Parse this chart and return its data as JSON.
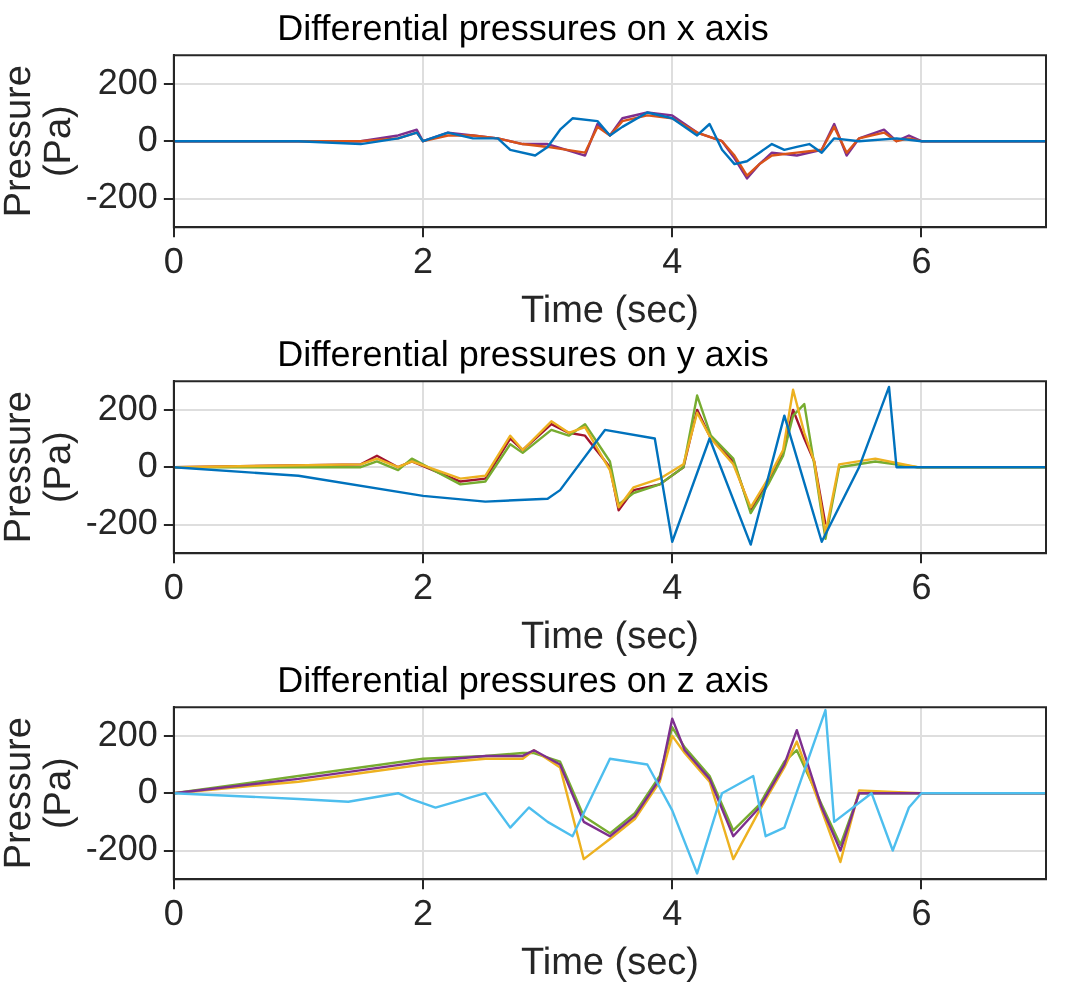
{
  "chart_data": [
    {
      "type": "line",
      "title": "Differential pressures on x axis",
      "xlabel": "Time (sec)",
      "ylabel": "Pressure (Pa)",
      "xlim": [
        0,
        7
      ],
      "xticks": [
        0,
        2,
        4,
        6
      ],
      "ylim": [
        -300,
        300
      ],
      "yticks": [
        -200,
        0,
        200
      ],
      "grid": true,
      "series": [
        {
          "color": "#0072bd",
          "x": [
            0,
            1,
            1.5,
            1.8,
            1.95,
            2.0,
            2.2,
            2.4,
            2.6,
            2.7,
            2.9,
            3.0,
            3.1,
            3.2,
            3.4,
            3.5,
            3.6,
            3.8,
            4.0,
            4.2,
            4.3,
            4.4,
            4.5,
            4.6,
            4.7,
            4.8,
            4.9,
            5.0,
            5.1,
            5.2,
            5.3,
            5.5,
            5.8,
            6,
            7
          ],
          "values": [
            0,
            0,
            -10,
            10,
            30,
            0,
            30,
            10,
            10,
            -30,
            -50,
            -20,
            40,
            80,
            70,
            20,
            50,
            100,
            80,
            20,
            60,
            -30,
            -80,
            -70,
            -40,
            -10,
            -30,
            -20,
            -10,
            -40,
            10,
            0,
            10,
            0,
            0
          ]
        },
        {
          "color": "#d95319",
          "x": [
            0,
            1.5,
            1.8,
            1.95,
            2.0,
            2.2,
            2.4,
            2.6,
            2.8,
            3.0,
            3.3,
            3.4,
            3.5,
            3.6,
            3.8,
            4.0,
            4.2,
            4.4,
            4.5,
            4.6,
            4.7,
            4.8,
            5.0,
            5.2,
            5.3,
            5.4,
            5.5,
            5.7,
            5.8,
            5.9,
            6,
            7
          ],
          "values": [
            0,
            0,
            10,
            30,
            0,
            20,
            20,
            10,
            -10,
            -20,
            -40,
            50,
            20,
            70,
            90,
            80,
            30,
            0,
            -50,
            -120,
            -80,
            -50,
            -40,
            -30,
            50,
            -40,
            10,
            30,
            0,
            10,
            0,
            0
          ]
        },
        {
          "color": "#7e2f8e",
          "x": [
            0,
            1.5,
            1.8,
            1.95,
            2.0,
            2.2,
            2.4,
            2.6,
            2.8,
            3.0,
            3.3,
            3.4,
            3.5,
            3.6,
            3.8,
            4.0,
            4.2,
            4.4,
            4.5,
            4.6,
            4.7,
            4.8,
            5.0,
            5.2,
            5.3,
            5.4,
            5.5,
            5.7,
            5.8,
            5.9,
            6,
            7
          ],
          "values": [
            0,
            0,
            20,
            40,
            0,
            30,
            20,
            10,
            -10,
            -10,
            -50,
            60,
            20,
            80,
            100,
            90,
            30,
            0,
            -60,
            -130,
            -80,
            -40,
            -50,
            -30,
            60,
            -50,
            10,
            40,
            0,
            20,
            0,
            0
          ]
        }
      ]
    },
    {
      "type": "line",
      "title": "Differential pressures on y axis",
      "xlabel": "Time (sec)",
      "ylabel": "Pressure (Pa)",
      "xlim": [
        0,
        7
      ],
      "xticks": [
        0,
        2,
        4,
        6
      ],
      "ylim": [
        -300,
        300
      ],
      "yticks": [
        -200,
        0,
        200
      ],
      "grid": true,
      "series": [
        {
          "color": "#0072bd",
          "x": [
            0,
            1,
            2,
            2.5,
            3.0,
            3.1,
            3.46,
            3.86,
            4.0,
            4.3,
            4.63,
            4.9,
            5.2,
            5.5,
            5.74,
            5.8,
            6,
            7
          ],
          "values": [
            0,
            -30,
            -100,
            -120,
            -110,
            -80,
            130,
            100,
            -260,
            100,
            -270,
            180,
            -260,
            0,
            280,
            0,
            0,
            0
          ]
        },
        {
          "color": "#edb120",
          "x": [
            0,
            1.5,
            1.63,
            1.8,
            1.91,
            2.3,
            2.5,
            2.7,
            2.8,
            3.03,
            3.17,
            3.3,
            3.5,
            3.57,
            3.69,
            3.9,
            4.09,
            4.2,
            4.31,
            4.49,
            4.63,
            4.77,
            4.89,
            4.97,
            5.06,
            5.14,
            5.23,
            5.34,
            5.63,
            5.97,
            7
          ],
          "values": [
            0,
            10,
            30,
            0,
            20,
            -40,
            -30,
            110,
            60,
            160,
            120,
            140,
            -10,
            -140,
            -70,
            -40,
            10,
            190,
            100,
            10,
            -140,
            -40,
            60,
            270,
            120,
            20,
            -230,
            10,
            30,
            0,
            0
          ]
        },
        {
          "color": "#77ac30",
          "x": [
            0,
            1.5,
            1.63,
            1.8,
            1.91,
            2.3,
            2.5,
            2.7,
            2.8,
            3.03,
            3.17,
            3.3,
            3.5,
            3.57,
            3.69,
            3.9,
            4.09,
            4.2,
            4.31,
            4.49,
            4.63,
            4.77,
            4.89,
            4.97,
            5.06,
            5.14,
            5.23,
            5.34,
            5.63,
            5.97,
            7
          ],
          "values": [
            0,
            0,
            20,
            -10,
            30,
            -60,
            -50,
            80,
            50,
            130,
            110,
            150,
            20,
            -130,
            -90,
            -60,
            0,
            250,
            110,
            30,
            -160,
            -60,
            40,
            180,
            220,
            10,
            -250,
            0,
            20,
            0,
            0
          ]
        },
        {
          "color": "#a2142f",
          "x": [
            0,
            1.5,
            1.63,
            1.8,
            1.91,
            2.3,
            2.5,
            2.7,
            2.8,
            3.03,
            3.17,
            3.3,
            3.5,
            3.57,
            3.69,
            3.9,
            4.09,
            4.2,
            4.31,
            4.49,
            4.63,
            4.77,
            4.89,
            4.97,
            5.06,
            5.14,
            5.23
          ],
          "values": [
            0,
            10,
            40,
            0,
            20,
            -50,
            -40,
            100,
            60,
            150,
            120,
            110,
            0,
            -150,
            -80,
            -60,
            0,
            200,
            100,
            20,
            -150,
            -50,
            50,
            200,
            100,
            20,
            -200
          ]
        }
      ]
    },
    {
      "type": "line",
      "title": "Differential pressures on z axis",
      "xlabel": "Time (sec)",
      "ylabel": "Pressure (Pa)",
      "xlim": [
        0,
        7
      ],
      "xticks": [
        0,
        2,
        4,
        6
      ],
      "ylim": [
        -300,
        300
      ],
      "yticks": [
        -200,
        0,
        200
      ],
      "grid": true,
      "series": [
        {
          "color": "#4dbeee",
          "x": [
            0,
            1,
            1.4,
            1.8,
            1.9,
            2.1,
            2.5,
            2.7,
            2.85,
            3.0,
            3.2,
            3.5,
            3.8,
            4.0,
            4.2,
            4.4,
            4.65,
            4.75,
            4.9,
            5.23,
            5.3,
            5.6,
            5.77,
            5.9,
            6,
            7
          ],
          "values": [
            0,
            -20,
            -30,
            0,
            -20,
            -50,
            0,
            -120,
            -50,
            -100,
            -150,
            120,
            100,
            -60,
            -280,
            0,
            60,
            -150,
            -120,
            290,
            -100,
            0,
            -200,
            -50,
            0,
            0
          ]
        },
        {
          "color": "#7e2f8e",
          "x": [
            0,
            1,
            2,
            2.5,
            2.8,
            2.89,
            3.1,
            3.29,
            3.5,
            3.7,
            3.9,
            4.0,
            4.1,
            4.3,
            4.49,
            4.7,
            4.9,
            5.0,
            5.2,
            5.35,
            5.5,
            6,
            7
          ],
          "values": [
            0,
            50,
            110,
            130,
            130,
            150,
            100,
            -100,
            -150,
            -80,
            50,
            260,
            150,
            50,
            -150,
            -50,
            100,
            220,
            -50,
            -200,
            0,
            0,
            0
          ]
        },
        {
          "color": "#edb120",
          "x": [
            0,
            1,
            2,
            2.5,
            2.8,
            2.89,
            3.1,
            3.29,
            3.5,
            3.7,
            3.9,
            4.0,
            4.1,
            4.3,
            4.49,
            4.7,
            4.9,
            5.0,
            5.2,
            5.35,
            5.5,
            6,
            7
          ],
          "values": [
            0,
            40,
            100,
            120,
            120,
            150,
            90,
            -230,
            -160,
            -90,
            40,
            200,
            140,
            40,
            -230,
            -60,
            90,
            180,
            -60,
            -240,
            10,
            0,
            0
          ]
        },
        {
          "color": "#77ac30",
          "x": [
            0,
            1,
            2,
            2.5,
            2.8,
            2.89,
            3.1,
            3.29,
            3.5,
            3.7,
            3.9,
            4.0,
            4.1,
            4.3,
            4.49,
            4.7,
            4.9,
            5.0,
            5.2,
            5.35,
            5.5,
            6,
            7
          ],
          "values": [
            0,
            60,
            120,
            130,
            140,
            140,
            110,
            -80,
            -140,
            -70,
            60,
            230,
            160,
            60,
            -130,
            -40,
            110,
            150,
            -40,
            -180,
            0,
            0,
            0
          ]
        }
      ]
    }
  ]
}
